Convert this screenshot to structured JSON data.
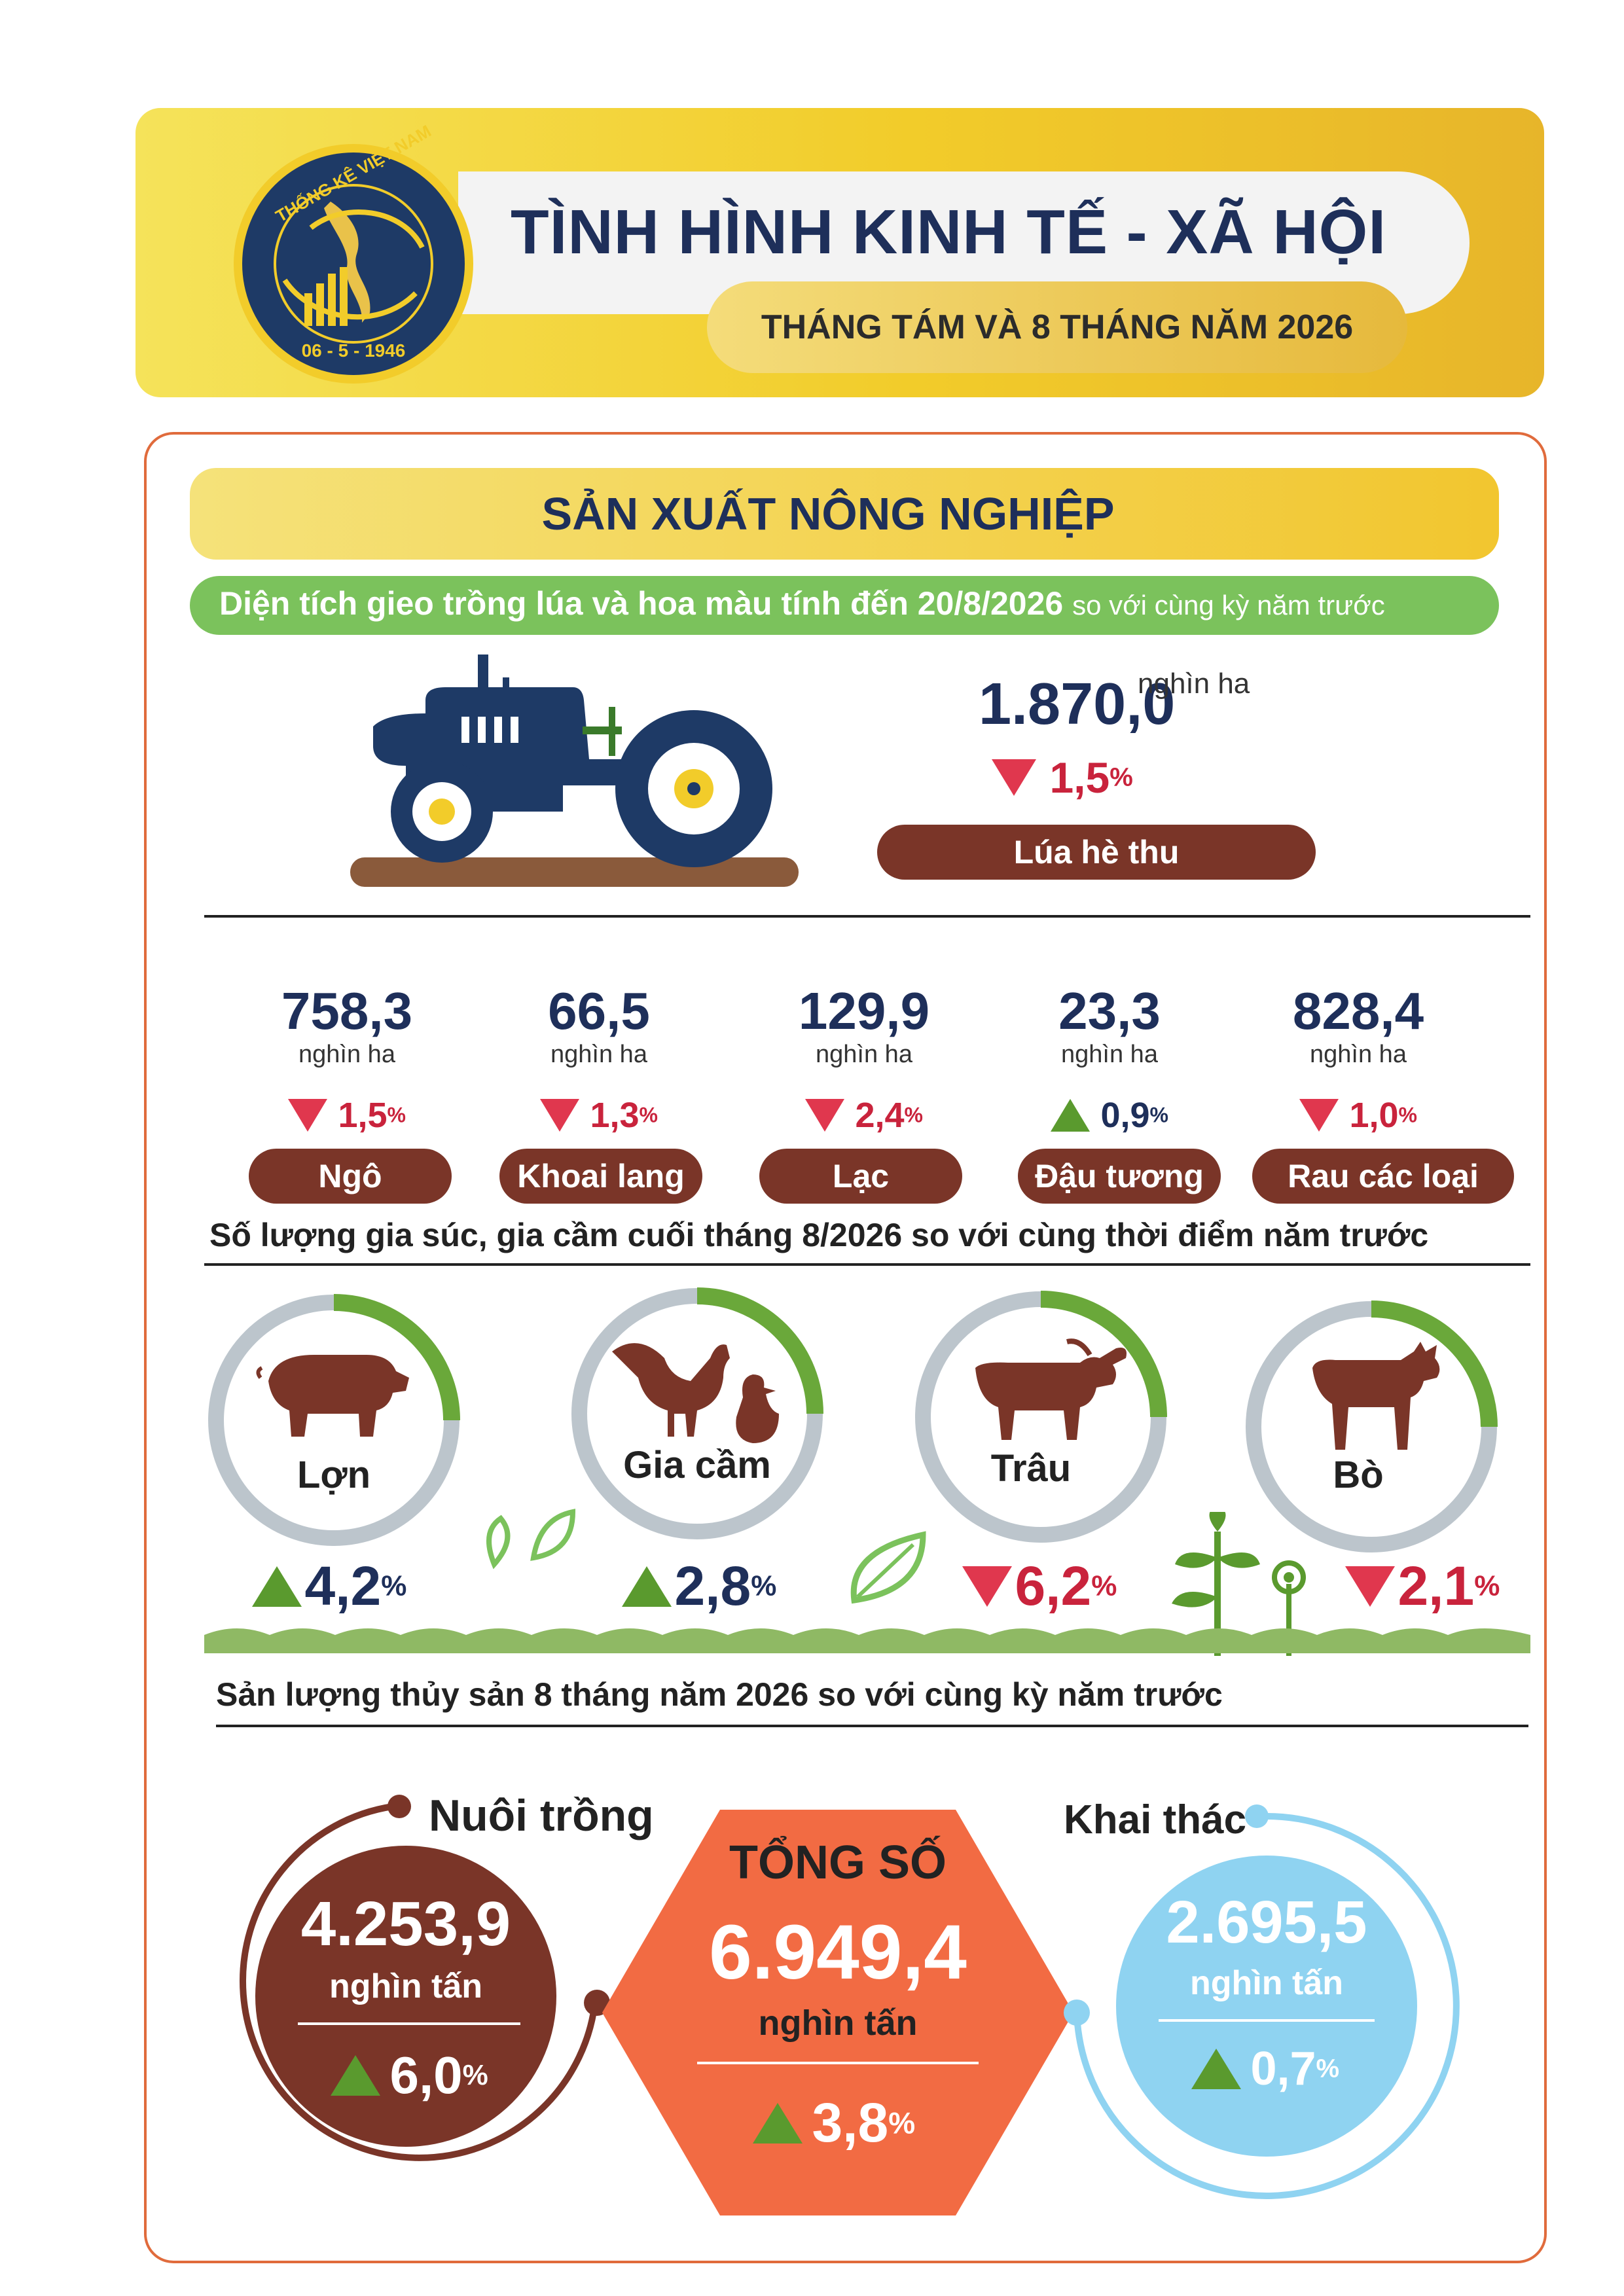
{
  "header": {
    "logo_ring_text": "THỐNG KÊ VIỆT NAM",
    "logo_date": "06 - 5 - 1946",
    "title": "TÌNH HÌNH KINH TẾ - XÃ HỘI",
    "subtitle": "THÁNG TÁM VÀ 8 THÁNG NĂM 2026"
  },
  "section_title": "SẢN XUẤT NÔNG NGHIỆP",
  "planting": {
    "banner_bold": "Diện tích gieo trồng lúa và hoa màu tính đến 20/8/2026",
    "banner_light": "so với cùng kỳ năm trước",
    "main": {
      "value": "1.870,0",
      "unit": "nghìn ha",
      "change": "1,5",
      "pct": "%",
      "direction": "down",
      "label": "Lúa hè thu"
    },
    "crops": [
      {
        "value": "758,3",
        "unit": "nghìn ha",
        "change": "1,5",
        "pct": "%",
        "direction": "down",
        "label": "Ngô"
      },
      {
        "value": "66,5",
        "unit": "nghìn ha",
        "change": "1,3",
        "pct": "%",
        "direction": "down",
        "label": "Khoai lang"
      },
      {
        "value": "129,9",
        "unit": "nghìn ha",
        "change": "2,4",
        "pct": "%",
        "direction": "down",
        "label": "Lạc"
      },
      {
        "value": "23,3",
        "unit": "nghìn ha",
        "change": "0,9",
        "pct": "%",
        "direction": "up",
        "label": "Đậu tương"
      },
      {
        "value": "828,4",
        "unit": "nghìn ha",
        "change": "1,0",
        "pct": "%",
        "direction": "down",
        "label": "Rau các loại"
      }
    ]
  },
  "livestock": {
    "heading": "Số lượng gia súc, gia cầm cuối tháng 8/2026 so với cùng thời điểm năm trước",
    "items": [
      {
        "label": "Lợn",
        "change": "4,2",
        "pct": "%",
        "direction": "up",
        "icon": "pig-icon"
      },
      {
        "label": "Gia cầm",
        "change": "2,8",
        "pct": "%",
        "direction": "up",
        "icon": "poultry-icon"
      },
      {
        "label": "Trâu",
        "change": "6,2",
        "pct": "%",
        "direction": "down",
        "icon": "buffalo-icon"
      },
      {
        "label": "Bò",
        "change": "2,1",
        "pct": "%",
        "direction": "down",
        "icon": "cow-icon"
      }
    ]
  },
  "fishery": {
    "heading": "Sản lượng thủy sản 8 tháng năm 2026 so với cùng kỳ năm trước",
    "aquaculture": {
      "label": "Nuôi trồng",
      "value": "4.253,9",
      "unit": "nghìn tấn",
      "change": "6,0",
      "pct": "%",
      "direction": "up"
    },
    "total": {
      "label": "TỔNG SỐ",
      "value": "6.949,4",
      "unit": "nghìn tấn",
      "change": "3,8",
      "pct": "%",
      "direction": "up"
    },
    "capture": {
      "label": "Khai thác",
      "value": "2.695,5",
      "unit": "nghìn tấn",
      "change": "0,7",
      "pct": "%",
      "direction": "up"
    }
  },
  "colors": {
    "navy": "#1e2f5a",
    "gold": "#f2c62f",
    "green_banner": "#7bc25c",
    "brown": "#7a3528",
    "orange": "#f26b43",
    "sky": "#8fd3f1",
    "down_red": "#e0374e",
    "up_green": "#5a9a2e"
  }
}
